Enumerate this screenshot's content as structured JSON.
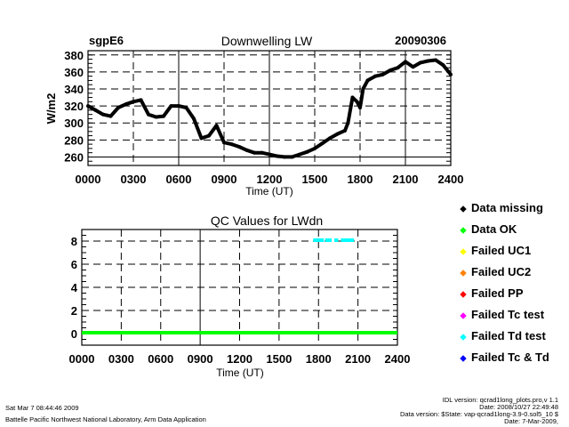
{
  "header": {
    "site": "sgpE6",
    "date": "20090306"
  },
  "chart_data": [
    {
      "type": "line",
      "title": "Downwelling LW",
      "xlabel": "Time (UT)",
      "ylabel": "W/m2",
      "xlim": [
        0,
        24
      ],
      "ylim": [
        250,
        385
      ],
      "grid": true,
      "xtick_labels": [
        "0000",
        "0300",
        "0600",
        "0900",
        "1200",
        "1500",
        "1800",
        "2100",
        "2400"
      ],
      "ytick_labels": [
        "260",
        "280",
        "300",
        "320",
        "340",
        "360",
        "380"
      ],
      "yticks": [
        260,
        280,
        300,
        320,
        340,
        360,
        380
      ],
      "series": [
        {
          "name": "LWdn",
          "color": "#000000",
          "x": [
            0,
            0.5,
            1,
            1.5,
            2,
            2.5,
            3,
            3.5,
            4,
            4.5,
            5,
            5.5,
            6,
            6.5,
            7,
            7.5,
            8,
            8.5,
            9,
            9.5,
            10,
            10.5,
            11,
            11.5,
            12,
            12.5,
            13,
            13.5,
            14,
            14.5,
            15,
            15.5,
            16,
            16.5,
            17,
            17.2,
            17.5,
            17.8,
            18,
            18.2,
            18.5,
            19,
            19.5,
            20,
            20.5,
            21,
            21.5,
            22,
            22.5,
            23,
            23.5,
            24
          ],
          "y": [
            320,
            315,
            310,
            308,
            318,
            322,
            325,
            327,
            310,
            307,
            308,
            320,
            320,
            318,
            305,
            282,
            285,
            297,
            277,
            275,
            272,
            268,
            265,
            265,
            263,
            261,
            260,
            260,
            263,
            266,
            270,
            276,
            282,
            287,
            291,
            300,
            330,
            325,
            318,
            340,
            350,
            355,
            357,
            362,
            365,
            372,
            366,
            371,
            373,
            374,
            368,
            357
          ]
        }
      ]
    },
    {
      "type": "scatter",
      "title": "QC Values for LWdn",
      "xlabel": "Time (UT)",
      "xlim": [
        0,
        24
      ],
      "ylim": [
        -1,
        9
      ],
      "grid": true,
      "xtick_labels": [
        "0000",
        "0300",
        "0600",
        "0900",
        "1200",
        "1500",
        "1800",
        "2100",
        "2400"
      ],
      "ytick_labels": [
        "0",
        "2",
        "4",
        "6",
        "8"
      ],
      "yticks": [
        0,
        2,
        4,
        6,
        8
      ],
      "series": [
        {
          "name": "Data OK",
          "color": "#00ff00",
          "segments": [
            [
              0,
              24,
              0
            ]
          ]
        },
        {
          "name": "Failed Td test",
          "color": "#00ffff",
          "segments": [
            [
              17.6,
              18.4,
              8
            ],
            [
              18.5,
              19.0,
              8
            ],
            [
              19.2,
              19.5,
              8
            ],
            [
              19.7,
              20.7,
              8
            ]
          ]
        }
      ],
      "legend": {
        "placement": "right",
        "entries": [
          {
            "label": "Data missing",
            "color": "#000000"
          },
          {
            "label": "Data OK",
            "color": "#00ff00"
          },
          {
            "label": "Failed UC1",
            "color": "#ffff00"
          },
          {
            "label": "Failed UC2",
            "color": "#ff8000"
          },
          {
            "label": "Failed PP",
            "color": "#ff0000"
          },
          {
            "label": "Failed Tc test",
            "color": "#ff00ff"
          },
          {
            "label": "Failed Td test",
            "color": "#00ffff"
          },
          {
            "label": "Failed Tc & Td",
            "color": "#0000ff"
          }
        ]
      }
    }
  ],
  "footer": {
    "timestamp": "Sat Mar  7 08:44:46 2009",
    "org": "Battelle Pacific Northwest National Laboratory, Arm Data Application",
    "idl_version": "IDL version: qcrad1long_plots.pro,v 1.1",
    "idl_date": "Date: 2008/10/27 22:49:48",
    "data_version": "Data version: $State: vap-qcrad1long-3.9-0.sol5_10 $",
    "data_date": "Date: 7-Mar-2009,"
  }
}
